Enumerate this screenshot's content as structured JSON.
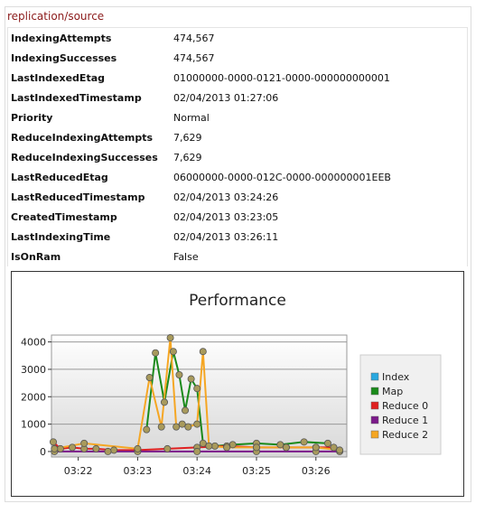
{
  "title": "replication/source",
  "properties": [
    [
      "IndexingAttempts",
      "474,567"
    ],
    [
      "IndexingSuccesses",
      "474,567"
    ],
    [
      "LastIndexedEtag",
      "01000000-0000-0121-0000-000000000001"
    ],
    [
      "LastIndexedTimestamp",
      "02/04/2013 01:27:06"
    ],
    [
      "Priority",
      "Normal"
    ],
    [
      "ReduceIndexingAttempts",
      "7,629"
    ],
    [
      "ReduceIndexingSuccesses",
      "7,629"
    ],
    [
      "LastReducedEtag",
      "06000000-0000-012C-0000-000000001EEB"
    ],
    [
      "LastReducedTimestamp",
      "02/04/2013 03:24:26"
    ],
    [
      "CreatedTimestamp",
      "02/04/2013 03:23:05"
    ],
    [
      "LastIndexingTime",
      "02/04/2013 03:26:11"
    ],
    [
      "IsOnRam",
      "False"
    ]
  ],
  "chart_data": {
    "type": "line",
    "title": "Performance",
    "xlim": [
      21.55,
      26.52
    ],
    "xticks": [
      {
        "value": 22,
        "label": "03:22"
      },
      {
        "value": 23,
        "label": "03:23"
      },
      {
        "value": 24,
        "label": "03:24"
      },
      {
        "value": 25,
        "label": "03:25"
      },
      {
        "value": 26,
        "label": "03:26"
      }
    ],
    "ylim": [
      -200,
      4250
    ],
    "yticks": [
      0,
      1000,
      2000,
      3000,
      4000
    ],
    "grid": true,
    "legend": "right",
    "series": [
      {
        "name": "Index",
        "color": "#29a8e0",
        "x": [],
        "values": []
      },
      {
        "name": "Map",
        "color": "#1a8a1a",
        "x": [
          23.15,
          23.3,
          23.45,
          23.6,
          23.7,
          23.8,
          23.9,
          24.0,
          24.1,
          24.3,
          24.6,
          25.0,
          25.4,
          25.8,
          26.2
        ],
        "values": [
          800,
          3600,
          1800,
          3650,
          2800,
          1500,
          2650,
          2300,
          300,
          200,
          250,
          300,
          250,
          350,
          300
        ]
      },
      {
        "name": "Reduce 0",
        "color": "#e02020",
        "x": [
          21.58,
          21.7,
          21.9,
          22.1,
          22.3,
          22.6,
          23.0,
          23.5,
          24.0,
          24.5,
          25.0,
          25.5,
          26.0,
          26.3
        ],
        "values": [
          350,
          100,
          150,
          100,
          100,
          50,
          50,
          100,
          150,
          200,
          150,
          150,
          150,
          150
        ]
      },
      {
        "name": "Reduce 1",
        "color": "#7b1a8a",
        "x": [
          21.6,
          22.5,
          23.0,
          24.0,
          25.0,
          26.0,
          26.4
        ],
        "values": [
          0,
          0,
          0,
          0,
          0,
          0,
          0
        ]
      },
      {
        "name": "Reduce 2",
        "color": "#f5a623",
        "x": [
          21.6,
          22.1,
          23.0,
          23.2,
          23.4,
          23.55,
          23.65,
          23.75,
          23.85,
          24.0,
          24.1,
          24.2,
          24.5,
          25.0,
          25.5,
          26.0,
          26.4
        ],
        "values": [
          100,
          300,
          100,
          2700,
          900,
          4150,
          900,
          1000,
          900,
          1000,
          3650,
          200,
          150,
          150,
          150,
          150,
          50
        ]
      }
    ]
  }
}
